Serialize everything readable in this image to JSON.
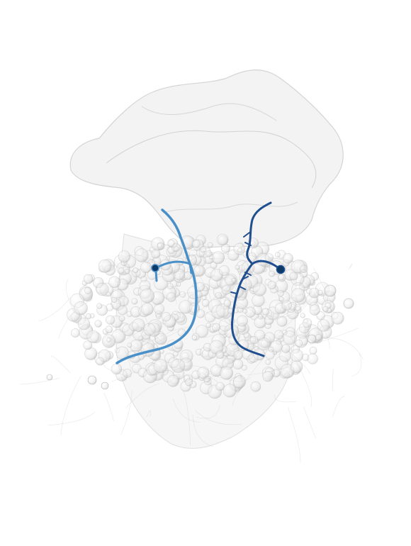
{
  "scene": {
    "background": "#ffffff",
    "mesh_fill": "#d9d9d9",
    "mesh_stroke": "#9a9a9a",
    "sphere_fill": "#e6e6e6",
    "sphere_stroke": "#b0b0b0",
    "neuron_left_color": "#4a90c8",
    "neuron_right_color": "#1f4f8f",
    "soma_color": "#0d3a66"
  }
}
